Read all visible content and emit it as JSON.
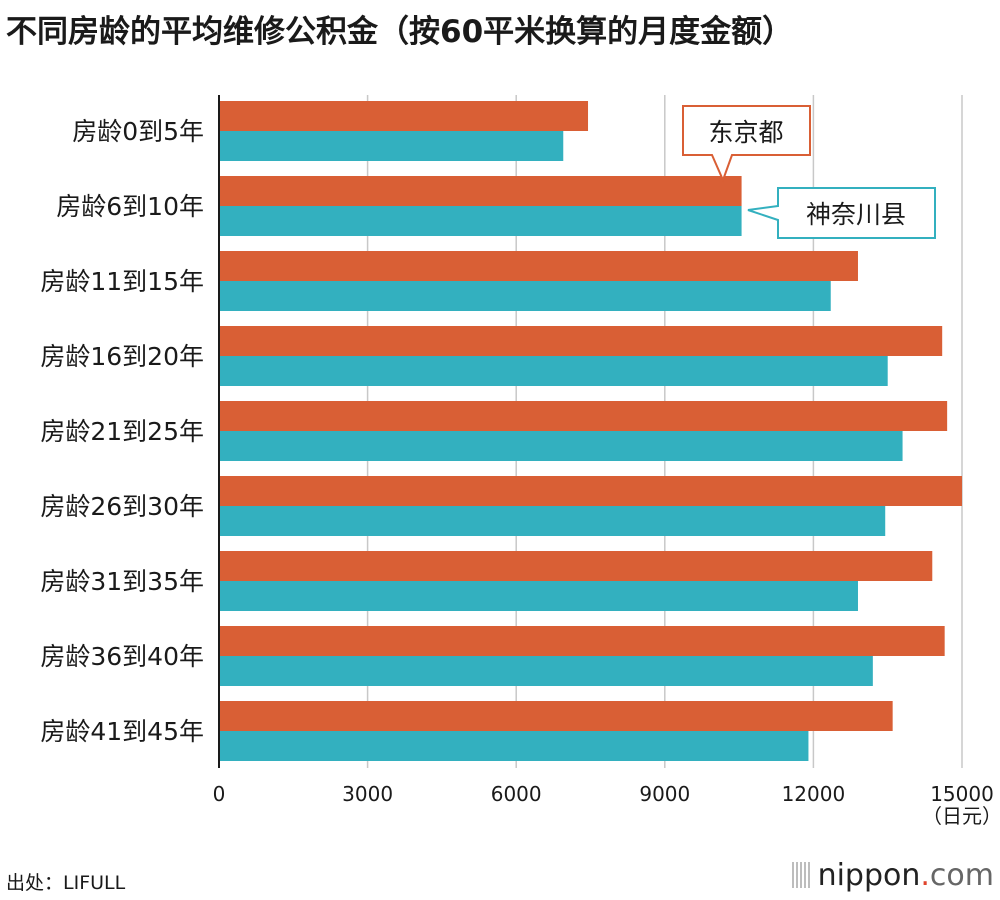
{
  "title": "不同房龄的平均维修公积金（按60平米换算的月度金额）",
  "source": "出处：LIFULL",
  "brand": {
    "name": "nippon",
    "dot": ".",
    "suffix": "com"
  },
  "colors": {
    "tokyo": "#d95f35",
    "kanagawa": "#33b0bf",
    "grid": "#c8c8c8",
    "axis": "#1a1a1a"
  },
  "chart_data": {
    "type": "bar",
    "orientation": "horizontal",
    "categories": [
      "房龄0到5年",
      "房龄6到10年",
      "房龄11到15年",
      "房龄16到20年",
      "房龄21到25年",
      "房龄26到30年",
      "房龄31到35年",
      "房龄36到40年",
      "房龄41到45年"
    ],
    "series": [
      {
        "name": "东京都",
        "color": "#d95f35",
        "values": [
          7450,
          10550,
          12900,
          14600,
          14700,
          15000,
          14400,
          14650,
          13600
        ]
      },
      {
        "name": "神奈川县",
        "color": "#33b0bf",
        "values": [
          6950,
          10550,
          12350,
          13500,
          13800,
          13450,
          12900,
          13200,
          11900
        ]
      }
    ],
    "xticks": [
      "0",
      "3000",
      "6000",
      "9000",
      "12000",
      "15000"
    ],
    "xunit": "（日元）",
    "xlim": [
      0,
      15000
    ],
    "grid": true,
    "legend": "callout labels near 房龄6到10年 bars"
  }
}
